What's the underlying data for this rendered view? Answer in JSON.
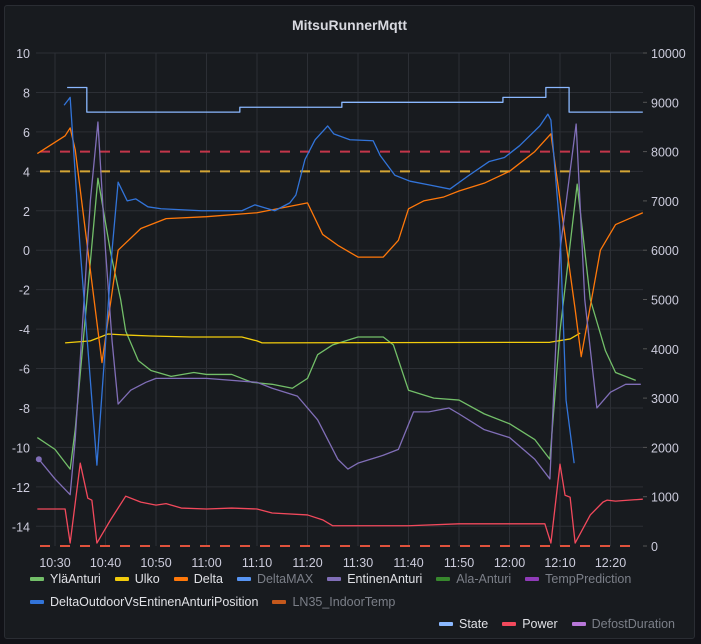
{
  "panel": {
    "title": "MitsuRunnerMqtt"
  },
  "legend": {
    "row1": [
      {
        "label": "YläAnturi",
        "color": "#73BF69",
        "visible": true
      },
      {
        "label": "Ulko",
        "color": "#F2CC0C",
        "visible": true
      },
      {
        "label": "Delta",
        "color": "#FF780A",
        "visible": true
      },
      {
        "label": "DeltaMAX",
        "color": "#5794F2",
        "visible": false
      },
      {
        "label": "EntinenAnturi",
        "color": "#806EB7",
        "visible": true
      },
      {
        "label": "Ala-Anturi",
        "color": "#37872D",
        "visible": false
      },
      {
        "label": "TempPrediction",
        "color": "#8F3BB8",
        "visible": false
      }
    ],
    "row2": [
      {
        "label": "DeltaOutdoorVsEntinenAnturiPosition",
        "color": "#3274D9",
        "visible": true
      },
      {
        "label": "LN35_IndoorTemp",
        "color": "#C4581C",
        "visible": false
      }
    ],
    "row3": [
      {
        "label": "State",
        "color": "#8AB8FF",
        "visible": true
      },
      {
        "label": "Power",
        "color": "#F2495C",
        "visible": true
      },
      {
        "label": "DefostDuration",
        "color": "#B877D9",
        "visible": false
      }
    ]
  },
  "chart_data": {
    "type": "line",
    "title": "MitsuRunnerMqtt",
    "grid": true,
    "legend_placement": "bottom",
    "x_range": [
      "10:26",
      "12:26"
    ],
    "x_ticks": [
      "10:30",
      "10:40",
      "10:50",
      "11:00",
      "11:10",
      "11:20",
      "11:30",
      "11:40",
      "11:50",
      "12:00",
      "12:10",
      "12:20"
    ],
    "y_left": {
      "range": [
        -15,
        10
      ],
      "ticks": [
        "10",
        "8",
        "6",
        "4",
        "2",
        "0",
        "-2",
        "-4",
        "-6",
        "-8",
        "-10",
        "-12",
        "-14"
      ]
    },
    "y_right": {
      "range": [
        0,
        10000
      ],
      "ticks": [
        "10000",
        "9000",
        "8000",
        "7000",
        "6000",
        "5000",
        "4000",
        "3000",
        "2000",
        "1000",
        "0"
      ]
    },
    "thresholds": [
      {
        "axis": "left",
        "value": 5,
        "color": "#C4364A"
      },
      {
        "axis": "left",
        "value": 4,
        "color": "#D3A535"
      },
      {
        "axis": "right",
        "value": 0,
        "color": "#E0523C"
      }
    ],
    "series": [
      {
        "name": "YläAnturi",
        "axis": "left",
        "color": "#73BF69",
        "x": [
          "10:26.5",
          "10:30",
          "10:33",
          "10:34",
          "10:38.5",
          "10:41",
          "10:43",
          "10:44",
          "10:46.5",
          "10:49",
          "10:53",
          "10:57.5",
          "11:00",
          "11:05",
          "11:09",
          "11:13",
          "11:17",
          "11:20",
          "11:22",
          "11:25",
          "11:30",
          "11:35",
          "11:37",
          "11:40",
          "11:45",
          "11:50",
          "11:55",
          "12:00",
          "12:05",
          "12:08",
          "12:10",
          "12:13.4",
          "12:16",
          "12:19",
          "12:21",
          "12:25"
        ],
        "y": [
          -9.5,
          -10.1,
          -11.1,
          -9.1,
          3.65,
          -0.1,
          -2.5,
          -4.1,
          -5.6,
          -6.1,
          -6.4,
          -6.2,
          -6.3,
          -6.3,
          -6.7,
          -6.8,
          -7.0,
          -6.5,
          -5.3,
          -4.8,
          -4.4,
          -4.4,
          -4.8,
          -7.1,
          -7.5,
          -7.6,
          -8.3,
          -8.8,
          -9.6,
          -10.6,
          -4.1,
          3.35,
          -2.5,
          -5.1,
          -6.2,
          -6.6
        ]
      },
      {
        "name": "Ulko",
        "axis": "left",
        "color": "#F2CC0C",
        "x": [
          "10:32",
          "10:37",
          "10:39",
          "10:40.5",
          "10:44",
          "10:49",
          "10:57",
          "11:07",
          "11:10",
          "11:11",
          "12:08",
          "12:12",
          "12:14"
        ],
        "y": [
          -4.7,
          -4.6,
          -4.4,
          -4.25,
          -4.3,
          -4.35,
          -4.4,
          -4.4,
          -4.6,
          -4.7,
          -4.67,
          -4.5,
          -4.2
        ]
      },
      {
        "name": "Delta",
        "axis": "left",
        "color": "#FF780A",
        "x": [
          "10:26.5",
          "10:32",
          "10:33",
          "10:34",
          "10:39.3",
          "10:42.5",
          "10:47",
          "10:52",
          "11:00",
          "11:10",
          "11:18",
          "11:20",
          "11:23",
          "11:26",
          "11:30",
          "11:35",
          "11:38",
          "11:40",
          "11:43",
          "11:47",
          "11:50",
          "11:55",
          "12:00",
          "12:05",
          "12:08.2",
          "12:13",
          "12:14.2",
          "12:18",
          "12:21",
          "12:26.4"
        ],
        "y": [
          4.9,
          5.8,
          6.2,
          5.1,
          -5.7,
          0,
          1.1,
          1.6,
          1.7,
          1.9,
          2.3,
          2.4,
          0.8,
          0.25,
          -0.35,
          -0.35,
          0.5,
          2.1,
          2.5,
          2.7,
          3.0,
          3.4,
          4.0,
          5.0,
          5.9,
          -3.0,
          -5.4,
          0,
          1.3,
          1.9
        ]
      },
      {
        "name": "EntinenAnturi",
        "axis": "left",
        "color": "#806EB7",
        "x": [
          "10:26.8",
          "10:30",
          "10:33",
          "10:34",
          "10:37",
          "10:38.5",
          "10:40",
          "10:41.3",
          "10:42.5",
          "10:45",
          "10:48",
          "10:50",
          "11:00",
          "11:10",
          "11:13",
          "11:18",
          "11:22",
          "11:26",
          "11:28",
          "11:30",
          "11:35",
          "11:38",
          "11:41",
          "11:44",
          "11:48",
          "11:50",
          "11:55",
          "12:00",
          "12:05",
          "12:08",
          "12:10",
          "12:13.2",
          "12:14.9",
          "12:17.3",
          "12:20",
          "12:23",
          "12:26"
        ],
        "y": [
          -10.6,
          -11.6,
          -12.4,
          -9.6,
          2.5,
          6.5,
          0,
          -4.6,
          -7.8,
          -7.1,
          -6.7,
          -6.5,
          -6.5,
          -6.7,
          -7.0,
          -7.4,
          -8.6,
          -10.6,
          -11.1,
          -10.8,
          -10.4,
          -10.1,
          -8.2,
          -8.2,
          -8.0,
          -8.3,
          -9.1,
          -9.5,
          -10.6,
          -11.6,
          0,
          6.4,
          -2.5,
          -8.0,
          -7.2,
          -6.8,
          -6.8
        ]
      },
      {
        "name": "DeltaOutdoorVsEntinenAnturiPosition",
        "axis": "left",
        "color": "#3274D9",
        "x": [
          "10:31.8",
          "10:33",
          "10:35",
          "10:38.3",
          "10:41.3",
          "10:42.5",
          "10:44.3",
          "10:46",
          "10:48.4",
          "10:51",
          "10:55",
          "10:59",
          "11:07",
          "11:09.6",
          "11:13.5",
          "11:16.5",
          "11:17.7",
          "11:19.5",
          "11:21.5",
          "11:24",
          "11:25.2",
          "11:28.4",
          "11:33",
          "11:34.4",
          "11:37.3",
          "11:40.3",
          "11:44.3",
          "11:48.2",
          "11:52",
          "11:56",
          "11:59",
          "12:02",
          "12:06",
          "12:07.6",
          "12:08.2",
          "12:10",
          "12:11.2",
          "12:12.8"
        ],
        "y": [
          7.35,
          7.75,
          0,
          -10.9,
          0,
          3.45,
          2.5,
          2.6,
          2.2,
          2.1,
          2.05,
          2.0,
          2.0,
          2.3,
          2.0,
          2.4,
          2.8,
          4.6,
          5.6,
          6.3,
          5.9,
          5.6,
          5.55,
          4.8,
          3.8,
          3.5,
          3.3,
          3.1,
          3.8,
          4.5,
          4.7,
          5.3,
          6.3,
          6.9,
          6.6,
          1.0,
          -7.6,
          -10.8
        ]
      },
      {
        "name": "State",
        "axis": "right",
        "color": "#8AB8FF",
        "step": true,
        "x": [
          "10:32.4",
          "10:36.3",
          "11:06.6",
          "11:26.8",
          "11:58.7",
          "12:07.2",
          "12:11.8",
          "12:26.4"
        ],
        "y": [
          9300,
          8800,
          8900,
          9000,
          9100,
          9300,
          8800,
          8800
        ]
      },
      {
        "name": "Power",
        "axis": "right",
        "color": "#F2495C",
        "x": [
          "10:26.5",
          "10:32",
          "10:33",
          "10:35",
          "10:36.5",
          "10:37.3",
          "10:38.3",
          "10:41",
          "10:44",
          "10:47",
          "10:50",
          "10:52",
          "10:55",
          "11:00",
          "11:05",
          "11:10",
          "11:13",
          "11:20",
          "11:23",
          "11:25",
          "11:30",
          "11:40",
          "11:50",
          "12:00",
          "12:07",
          "12:08.2",
          "12:10",
          "12:11",
          "12:12",
          "12:13",
          "12:16",
          "12:18.5",
          "12:19.3",
          "12:21",
          "12:26.4"
        ],
        "y": [
          750,
          750,
          60,
          1680,
          970,
          930,
          60,
          530,
          1010,
          890,
          830,
          860,
          770,
          750,
          770,
          750,
          670,
          630,
          530,
          410,
          410,
          410,
          450,
          450,
          450,
          60,
          1660,
          1030,
          990,
          60,
          630,
          890,
          930,
          910,
          950
        ]
      }
    ]
  }
}
